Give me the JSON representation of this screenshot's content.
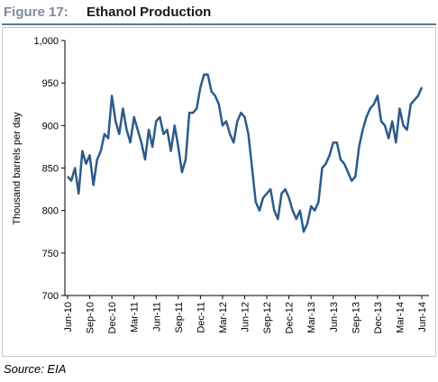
{
  "chart_data": {
    "type": "line",
    "title_prefix": "Figure 17:",
    "title": "Ethanol Production",
    "y_label": "Thousand barrels per day",
    "source": "Source: EIA",
    "color": "#2b5b8a",
    "categories": [
      "Jun-10",
      null,
      null,
      null,
      null,
      null,
      "Sep-10",
      null,
      null,
      null,
      null,
      null,
      "Dec-10",
      null,
      null,
      null,
      null,
      null,
      "Mar-11",
      null,
      null,
      null,
      null,
      null,
      "Jun-11",
      null,
      null,
      null,
      null,
      null,
      "Sep-11",
      null,
      null,
      null,
      null,
      null,
      "Dec-11",
      null,
      null,
      null,
      null,
      null,
      "Mar-12",
      null,
      null,
      null,
      null,
      null,
      "Jun-12",
      null,
      null,
      null,
      null,
      null,
      "Sep-12",
      null,
      null,
      null,
      null,
      null,
      "Dec-12",
      null,
      null,
      null,
      null,
      null,
      "Mar-13",
      null,
      null,
      null,
      null,
      null,
      "Jun-13",
      null,
      null,
      null,
      null,
      null,
      "Sep-13",
      null,
      null,
      null,
      null,
      null,
      "Dec-13",
      null,
      null,
      null,
      null,
      null,
      "Mar-14",
      null,
      null,
      null,
      null,
      null,
      "Jun-14"
    ],
    "values": [
      840,
      835,
      850,
      820,
      870,
      855,
      865,
      830,
      860,
      870,
      890,
      885,
      935,
      905,
      890,
      920,
      895,
      880,
      910,
      895,
      880,
      860,
      895,
      875,
      905,
      910,
      890,
      895,
      870,
      900,
      875,
      845,
      860,
      915,
      915,
      920,
      945,
      960,
      960,
      940,
      935,
      925,
      900,
      905,
      890,
      880,
      905,
      915,
      910,
      890,
      850,
      810,
      800,
      815,
      820,
      825,
      800,
      790,
      820,
      825,
      815,
      800,
      790,
      800,
      775,
      785,
      805,
      800,
      810,
      850,
      855,
      865,
      880,
      880,
      860,
      855,
      845,
      835,
      840,
      875,
      895,
      910,
      920,
      925,
      935,
      905,
      900,
      885,
      905,
      880,
      920,
      900,
      895,
      925,
      930,
      935,
      945
    ],
    "ylim": [
      700,
      1000
    ],
    "yticks": [
      700,
      750,
      800,
      850,
      900,
      950,
      {
        "value": 1000,
        "label": "1,000"
      }
    ]
  }
}
